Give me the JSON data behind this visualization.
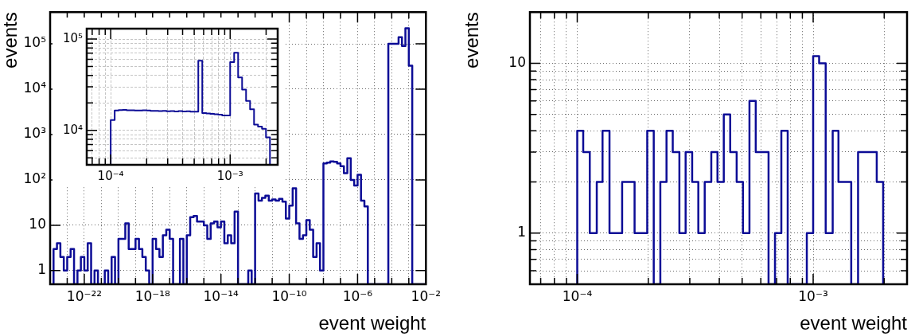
{
  "chart_data": [
    {
      "type": "histogram",
      "xlabel": "event weight",
      "ylabel": "events",
      "color": "#0c0c96",
      "log": "xy",
      "grid": true,
      "xlim": [
        1e-24,
        0.01
      ],
      "ylim": [
        0.5,
        500000.0
      ],
      "xticks": [
        {
          "value": 1e-24,
          "label": null
        },
        {
          "value": 1e-23,
          "label": null
        },
        {
          "value": 1e-22,
          "label": "10⁻²²"
        },
        {
          "value": 1e-21,
          "label": null
        },
        {
          "value": 1e-20,
          "label": null
        },
        {
          "value": 1e-19,
          "label": null
        },
        {
          "value": 1e-18,
          "label": "10⁻¹⁸"
        },
        {
          "value": 1e-17,
          "label": null
        },
        {
          "value": 1e-16,
          "label": null
        },
        {
          "value": 1e-15,
          "label": null
        },
        {
          "value": 1e-14,
          "label": "10⁻¹⁴"
        },
        {
          "value": 1e-13,
          "label": null
        },
        {
          "value": 1e-12,
          "label": null
        },
        {
          "value": 1e-11,
          "label": null
        },
        {
          "value": 1e-10,
          "label": "10⁻¹⁰"
        },
        {
          "value": 1e-09,
          "label": null
        },
        {
          "value": 1e-08,
          "label": null
        },
        {
          "value": 1e-07,
          "label": null
        },
        {
          "value": 1e-06,
          "label": "10⁻⁶"
        },
        {
          "value": 1e-05,
          "label": null
        },
        {
          "value": 0.0001,
          "label": null
        },
        {
          "value": 0.001,
          "label": null
        },
        {
          "value": 0.01,
          "label": "10⁻²"
        }
      ],
      "yticks": [
        {
          "value": 1,
          "label": "1"
        },
        {
          "value": 10,
          "label": "10"
        },
        {
          "value": 100,
          "label": "10²"
        },
        {
          "value": 1000,
          "label": "10³"
        },
        {
          "value": 10000,
          "label": "10⁴"
        },
        {
          "value": 100000,
          "label": "10⁵"
        }
      ],
      "bins": [
        1.585e-24,
        2.512e-24,
        3.981e-24,
        6.31e-24,
        1e-23,
        1.585e-23,
        2.512e-23,
        3.981e-23,
        6.31e-23,
        1e-22,
        1.585e-22,
        2.512e-22,
        3.981e-22,
        6.31e-22,
        1e-21,
        1.585e-21,
        2.512e-21,
        3.981e-21,
        6.31e-21,
        1e-20,
        1.585e-20,
        2.512e-20,
        3.981e-20,
        6.31e-20,
        1e-19,
        1.585e-19,
        2.512e-19,
        3.981e-19,
        6.31e-19,
        1e-18,
        1.585e-18,
        2.512e-18,
        3.981e-18,
        6.31e-18,
        1e-17,
        1.585e-17,
        2.512e-17,
        3.981e-17,
        6.31e-17,
        1e-16,
        1.585e-16,
        2.512e-16,
        3.981e-16,
        6.31e-16,
        1e-15,
        1.585e-15,
        2.512e-15,
        3.981e-15,
        6.31e-15,
        1e-14,
        1.585e-14,
        2.512e-14,
        3.981e-14,
        6.31e-14,
        1e-13,
        1.585e-13,
        2.512e-13,
        3.981e-13,
        6.31e-13,
        1e-12,
        1.585e-12,
        2.512e-12,
        3.981e-12,
        6.31e-12,
        1e-11,
        1.585e-11,
        2.512e-11,
        3.981e-11,
        6.31e-11,
        1e-10,
        1.585e-10,
        2.512e-10,
        3.981e-10,
        6.31e-10,
        1e-09,
        1.585e-09,
        2.512e-09,
        3.981e-09,
        6.31e-09,
        1e-08,
        1.585e-08,
        2.512e-08,
        3.981e-08,
        6.31e-08,
        1e-07,
        1.585e-07,
        2.512e-07,
        3.981e-07,
        6.31e-07,
        1e-06,
        1.585e-06,
        2.512e-06,
        3.981e-06,
        6.31e-06,
        1e-05,
        1.585e-05,
        2.512e-05,
        3.981e-05,
        6.31e-05,
        0.0001,
        0.0001585,
        0.0002512,
        0.0003981,
        0.000631,
        0.001,
        0.001585,
        0.002512,
        0.003981,
        0.00631,
        0.01
      ],
      "values": [
        3,
        4,
        2,
        1,
        2,
        3,
        null,
        1,
        2,
        1,
        4,
        null,
        1,
        null,
        null,
        1,
        null,
        2,
        null,
        5,
        5,
        11,
        3,
        3,
        5,
        3,
        2,
        1,
        null,
        5,
        3,
        2,
        6,
        8,
        5,
        null,
        null,
        5,
        null,
        6,
        15,
        16,
        12,
        12,
        10,
        5,
        11,
        12,
        9,
        12,
        4,
        6,
        4,
        20,
        null,
        null,
        null,
        1,
        null,
        50,
        35,
        40,
        45,
        35,
        37,
        35,
        38,
        33,
        14,
        27,
        65,
        11,
        5,
        6,
        13,
        8,
        2,
        4,
        1,
        230,
        240,
        255,
        250,
        230,
        200,
        140,
        300,
        100,
        75,
        130,
        35,
        26,
        null,
        null,
        null,
        null,
        null,
        null,
        100000.0,
        100000.0,
        100000.0,
        140000.0,
        90000.0,
        220000.0,
        33000.0,
        null,
        null,
        null,
        null
      ]
    },
    {
      "type": "histogram",
      "color": "#0c0c96",
      "log": "xy",
      "grid": true,
      "xlim": [
        6.3e-05,
        0.0025
      ],
      "ylim": [
        4200,
        130000.0
      ],
      "xticks": [
        {
          "value": 7e-05,
          "label": null
        },
        {
          "value": 8e-05,
          "label": null
        },
        {
          "value": 9e-05,
          "label": null
        },
        {
          "value": 0.0001,
          "label": "10⁻⁴"
        },
        {
          "value": 0.0002,
          "label": null
        },
        {
          "value": 0.0003,
          "label": null
        },
        {
          "value": 0.0004,
          "label": null
        },
        {
          "value": 0.0005,
          "label": null
        },
        {
          "value": 0.0006,
          "label": null
        },
        {
          "value": 0.0007,
          "label": null
        },
        {
          "value": 0.0008,
          "label": null
        },
        {
          "value": 0.0009,
          "label": null
        },
        {
          "value": 0.001,
          "label": "10⁻³"
        },
        {
          "value": 0.002,
          "label": null
        }
      ],
      "yticks": [
        {
          "value": 5000,
          "label": null
        },
        {
          "value": 6000,
          "label": null
        },
        {
          "value": 7000,
          "label": null
        },
        {
          "value": 8000,
          "label": null
        },
        {
          "value": 9000,
          "label": null
        },
        {
          "value": 10000,
          "label": "10⁴"
        },
        {
          "value": 20000,
          "label": null
        },
        {
          "value": 30000,
          "label": null
        },
        {
          "value": 40000,
          "label": null
        },
        {
          "value": 50000,
          "label": null
        },
        {
          "value": 60000,
          "label": null
        },
        {
          "value": 70000,
          "label": null
        },
        {
          "value": 80000,
          "label": null
        },
        {
          "value": 90000,
          "label": null
        },
        {
          "value": 100000,
          "label": "10⁵"
        }
      ],
      "bins": [
        0.0001,
        0.000108,
        0.0001166,
        0.0001259,
        0.0001359,
        0.0001468,
        0.0001585,
        0.0001711,
        0.0001848,
        0.0001995,
        0.0002154,
        0.0002326,
        0.0002512,
        0.0002712,
        0.0002929,
        0.0003162,
        0.0003415,
        0.0003687,
        0.0003981,
        0.0004299,
        0.0004642,
        0.0005012,
        0.0005412,
        0.0005843,
        0.000631,
        0.0006813,
        0.0007356,
        0.0007943,
        0.0008577,
        0.0009261,
        0.001,
        0.00108,
        0.001166,
        0.001259,
        0.001359,
        0.001468,
        0.001585,
        0.001711,
        0.001848,
        0.001995,
        0.002154
      ],
      "values": [
        13000.0,
        16500.0,
        16700.0,
        16800.0,
        16600.0,
        16600.0,
        16500.0,
        16500.0,
        16600.0,
        16500.0,
        16400.0,
        16400.0,
        16300.0,
        16400.0,
        16200.0,
        16300.0,
        16100.0,
        16300.0,
        16100.0,
        16200.0,
        16000.0,
        16000.0,
        58000.0,
        15500.0,
        15300.0,
        15200.0,
        15000.0,
        14900.0,
        14600.0,
        14600.0,
        56000.0,
        71000.0,
        38000.0,
        28000.0,
        21000.0,
        17000.0,
        11600.0,
        11000.0,
        10400.0,
        8400.0
      ]
    },
    {
      "type": "histogram",
      "xlabel": "event weight",
      "ylabel": "events",
      "color": "#0c0c96",
      "log": "xy",
      "grid": true,
      "xlim": [
        6.3e-05,
        0.0025
      ],
      "ylim": [
        0.5,
        20
      ],
      "xticks": [
        {
          "value": 7e-05,
          "label": null
        },
        {
          "value": 8e-05,
          "label": null
        },
        {
          "value": 9e-05,
          "label": null
        },
        {
          "value": 0.0001,
          "label": "10⁻⁴"
        },
        {
          "value": 0.0002,
          "label": null
        },
        {
          "value": 0.0003,
          "label": null
        },
        {
          "value": 0.0004,
          "label": null
        },
        {
          "value": 0.0005,
          "label": null
        },
        {
          "value": 0.0006,
          "label": null
        },
        {
          "value": 0.0007,
          "label": null
        },
        {
          "value": 0.0008,
          "label": null
        },
        {
          "value": 0.0009,
          "label": null
        },
        {
          "value": 0.001,
          "label": "10⁻³"
        },
        {
          "value": 0.002,
          "label": null
        }
      ],
      "yticks": [
        {
          "value": 0.6,
          "label": null
        },
        {
          "value": 0.7,
          "label": null
        },
        {
          "value": 0.8,
          "label": null
        },
        {
          "value": 0.9,
          "label": null
        },
        {
          "value": 1,
          "label": "1"
        },
        {
          "value": 2,
          "label": null
        },
        {
          "value": 3,
          "label": null
        },
        {
          "value": 4,
          "label": null
        },
        {
          "value": 5,
          "label": null
        },
        {
          "value": 6,
          "label": null
        },
        {
          "value": 7,
          "label": null
        },
        {
          "value": 8,
          "label": null
        },
        {
          "value": 9,
          "label": null
        },
        {
          "value": 10,
          "label": "10"
        }
      ],
      "bins": [
        0.0001,
        0.000106,
        0.000113,
        0.000121,
        0.000128,
        0.000137,
        0.000145,
        0.000155,
        0.000165,
        0.000175,
        0.000186,
        0.000198,
        0.000211,
        0.000225,
        0.000239,
        0.000254,
        0.000271,
        0.000288,
        0.000307,
        0.000326,
        0.000347,
        0.00037,
        0.000393,
        0.000418,
        0.000445,
        0.000474,
        0.000504,
        0.000537,
        0.000571,
        0.000608,
        0.000647,
        0.000689,
        0.000733,
        0.00078,
        0.00083,
        0.000883,
        0.00094,
        0.001,
        0.00106,
        0.00113,
        0.00121,
        0.00128,
        0.00137,
        0.00145,
        0.00155,
        0.00165,
        0.00175,
        0.00186,
        0.00198
      ],
      "values": [
        4,
        3,
        1,
        2,
        4,
        1,
        1,
        2,
        2,
        1,
        1,
        4,
        null,
        2,
        4,
        3,
        1,
        3,
        2,
        1,
        2,
        3,
        2,
        5,
        3,
        2,
        1,
        6,
        3,
        3,
        null,
        1,
        4,
        null,
        null,
        null,
        1,
        11,
        10,
        1,
        4,
        2,
        2,
        null,
        3,
        3,
        3,
        2
      ]
    }
  ]
}
